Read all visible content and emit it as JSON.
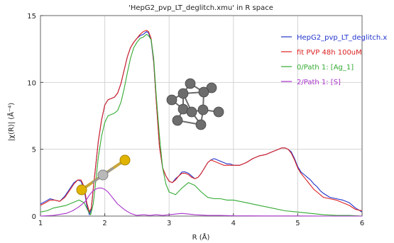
{
  "chart_data": {
    "type": "line",
    "title": "'HepG2_pvp_LT_deglitch.xmu' in R space",
    "xlabel": "R (Å)",
    "ylabel": "|χ(R)| (Å⁻⁴)",
    "xlim": [
      1,
      6
    ],
    "ylim": [
      0,
      15
    ],
    "x_ticks": [
      1,
      2,
      3,
      4,
      5,
      6
    ],
    "y_ticks": [
      0,
      5,
      10,
      15
    ],
    "grid": true,
    "legend_position": "top-right",
    "series": [
      {
        "name": "HepG2_pvp_LT_deglitch.x",
        "color": "#2233cc",
        "x": [
          1.0,
          1.08,
          1.15,
          1.22,
          1.3,
          1.38,
          1.45,
          1.52,
          1.58,
          1.63,
          1.68,
          1.72,
          1.76,
          1.79,
          1.82,
          1.86,
          1.9,
          1.95,
          2.0,
          2.05,
          2.1,
          2.15,
          2.2,
          2.25,
          2.3,
          2.35,
          2.4,
          2.45,
          2.5,
          2.55,
          2.6,
          2.65,
          2.68,
          2.72,
          2.76,
          2.8,
          2.85,
          2.9,
          2.95,
          3.0,
          3.05,
          3.1,
          3.15,
          3.2,
          3.25,
          3.3,
          3.35,
          3.4,
          3.45,
          3.5,
          3.55,
          3.6,
          3.65,
          3.7,
          3.75,
          3.8,
          3.85,
          3.9,
          3.95,
          4.0,
          4.1,
          4.2,
          4.3,
          4.4,
          4.5,
          4.6,
          4.7,
          4.75,
          4.8,
          4.85,
          4.9,
          4.95,
          5.0,
          5.05,
          5.1,
          5.15,
          5.2,
          5.25,
          5.3,
          5.35,
          5.4,
          5.5,
          5.6,
          5.7,
          5.8,
          5.9,
          6.0
        ],
        "values": [
          0.9,
          1.1,
          1.3,
          1.2,
          1.1,
          1.5,
          2.0,
          2.5,
          2.7,
          2.6,
          2.0,
          0.8,
          0.1,
          0.5,
          2.0,
          3.8,
          5.6,
          7.2,
          8.3,
          8.7,
          8.8,
          8.9,
          9.2,
          9.9,
          10.9,
          11.9,
          12.6,
          13.0,
          13.3,
          13.5,
          13.6,
          13.8,
          13.7,
          13.2,
          11.5,
          8.6,
          5.2,
          3.6,
          3.0,
          2.6,
          2.5,
          2.8,
          3.0,
          3.3,
          3.3,
          3.2,
          3.0,
          2.8,
          2.9,
          3.2,
          3.6,
          4.0,
          4.2,
          4.3,
          4.2,
          4.1,
          4.0,
          3.9,
          3.9,
          3.8,
          3.8,
          4.0,
          4.3,
          4.5,
          4.6,
          4.8,
          5.0,
          5.1,
          5.1,
          5.0,
          4.8,
          4.3,
          3.7,
          3.3,
          3.1,
          2.9,
          2.7,
          2.4,
          2.2,
          1.9,
          1.7,
          1.4,
          1.3,
          1.2,
          1.0,
          0.6,
          0.3
        ]
      },
      {
        "name": "fit  PVP 48h 100uM",
        "color": "#dd2222",
        "x": [
          1.0,
          1.08,
          1.15,
          1.22,
          1.3,
          1.38,
          1.45,
          1.52,
          1.58,
          1.63,
          1.68,
          1.72,
          1.76,
          1.79,
          1.82,
          1.86,
          1.9,
          1.95,
          2.0,
          2.05,
          2.1,
          2.15,
          2.2,
          2.25,
          2.3,
          2.35,
          2.4,
          2.45,
          2.5,
          2.55,
          2.6,
          2.65,
          2.68,
          2.72,
          2.76,
          2.8,
          2.85,
          2.9,
          2.95,
          3.0,
          3.05,
          3.1,
          3.15,
          3.2,
          3.25,
          3.3,
          3.35,
          3.4,
          3.45,
          3.5,
          3.55,
          3.6,
          3.65,
          3.7,
          3.75,
          3.8,
          3.85,
          3.9,
          3.95,
          4.0,
          4.1,
          4.2,
          4.3,
          4.4,
          4.5,
          4.6,
          4.7,
          4.75,
          4.8,
          4.85,
          4.9,
          4.95,
          5.0,
          5.05,
          5.1,
          5.15,
          5.2,
          5.25,
          5.3,
          5.35,
          5.4,
          5.5,
          5.6,
          5.7,
          5.8,
          5.9,
          6.0
        ],
        "values": [
          0.8,
          1.0,
          1.2,
          1.2,
          1.1,
          1.4,
          1.9,
          2.4,
          2.7,
          2.7,
          2.2,
          1.0,
          0.3,
          0.6,
          2.0,
          3.8,
          5.6,
          7.2,
          8.3,
          8.7,
          8.8,
          8.9,
          9.2,
          9.9,
          10.9,
          11.9,
          12.6,
          13.0,
          13.3,
          13.6,
          13.8,
          13.9,
          13.8,
          13.3,
          11.6,
          8.6,
          5.2,
          3.6,
          3.0,
          2.6,
          2.5,
          2.7,
          3.0,
          3.2,
          3.2,
          3.1,
          2.9,
          2.8,
          2.9,
          3.2,
          3.6,
          4.0,
          4.2,
          4.1,
          4.0,
          3.9,
          3.8,
          3.8,
          3.8,
          3.8,
          3.8,
          4.0,
          4.3,
          4.5,
          4.6,
          4.8,
          5.0,
          5.1,
          5.1,
          5.0,
          4.7,
          4.2,
          3.6,
          3.2,
          2.9,
          2.6,
          2.3,
          2.0,
          1.8,
          1.6,
          1.4,
          1.3,
          1.2,
          1.0,
          0.8,
          0.5,
          0.4
        ]
      },
      {
        "name": "0/Path 1: [Ag_1]",
        "color": "#33aa33",
        "x": [
          1.0,
          1.1,
          1.2,
          1.3,
          1.4,
          1.5,
          1.6,
          1.68,
          1.74,
          1.78,
          1.82,
          1.86,
          1.9,
          1.95,
          2.0,
          2.05,
          2.1,
          2.15,
          2.2,
          2.25,
          2.3,
          2.35,
          2.4,
          2.45,
          2.5,
          2.55,
          2.6,
          2.65,
          2.68,
          2.72,
          2.76,
          2.8,
          2.85,
          2.9,
          2.95,
          3.0,
          3.1,
          3.2,
          3.3,
          3.4,
          3.5,
          3.6,
          3.7,
          3.8,
          3.9,
          4.0,
          4.2,
          4.4,
          4.6,
          4.8,
          5.0,
          5.2,
          5.4,
          5.6,
          5.8,
          6.0
        ],
        "values": [
          0.3,
          0.4,
          0.6,
          0.7,
          0.8,
          1.0,
          1.2,
          1.0,
          0.4,
          0.1,
          0.9,
          2.6,
          4.4,
          6.0,
          7.0,
          7.5,
          7.6,
          7.7,
          7.9,
          8.5,
          9.5,
          10.7,
          11.8,
          12.6,
          13.0,
          13.3,
          13.4,
          13.6,
          13.5,
          13.2,
          11.8,
          9.0,
          6.0,
          3.6,
          2.4,
          1.8,
          1.6,
          2.1,
          2.5,
          2.3,
          1.8,
          1.4,
          1.3,
          1.3,
          1.2,
          1.2,
          1.0,
          0.8,
          0.6,
          0.4,
          0.3,
          0.2,
          0.1,
          0.05,
          0.05,
          0.0
        ]
      },
      {
        "name": "2/Path 1: [S]",
        "color": "#aa33cc",
        "x": [
          1.0,
          1.2,
          1.4,
          1.5,
          1.6,
          1.7,
          1.75,
          1.8,
          1.85,
          1.9,
          1.95,
          2.0,
          2.05,
          2.1,
          2.15,
          2.2,
          2.3,
          2.4,
          2.5,
          2.6,
          2.7,
          2.8,
          2.9,
          3.0,
          3.2,
          3.4,
          3.6,
          3.8,
          4.0,
          4.5,
          5.0,
          5.5,
          6.0
        ],
        "values": [
          0.0,
          0.05,
          0.2,
          0.4,
          0.7,
          1.1,
          1.5,
          1.8,
          2.0,
          2.1,
          2.1,
          2.0,
          1.8,
          1.5,
          1.2,
          0.9,
          0.5,
          0.2,
          0.05,
          0.1,
          0.05,
          0.1,
          0.05,
          0.1,
          0.2,
          0.1,
          0.05,
          0.05,
          0.02,
          0.01,
          0.01,
          0.0,
          0.0
        ]
      }
    ]
  }
}
